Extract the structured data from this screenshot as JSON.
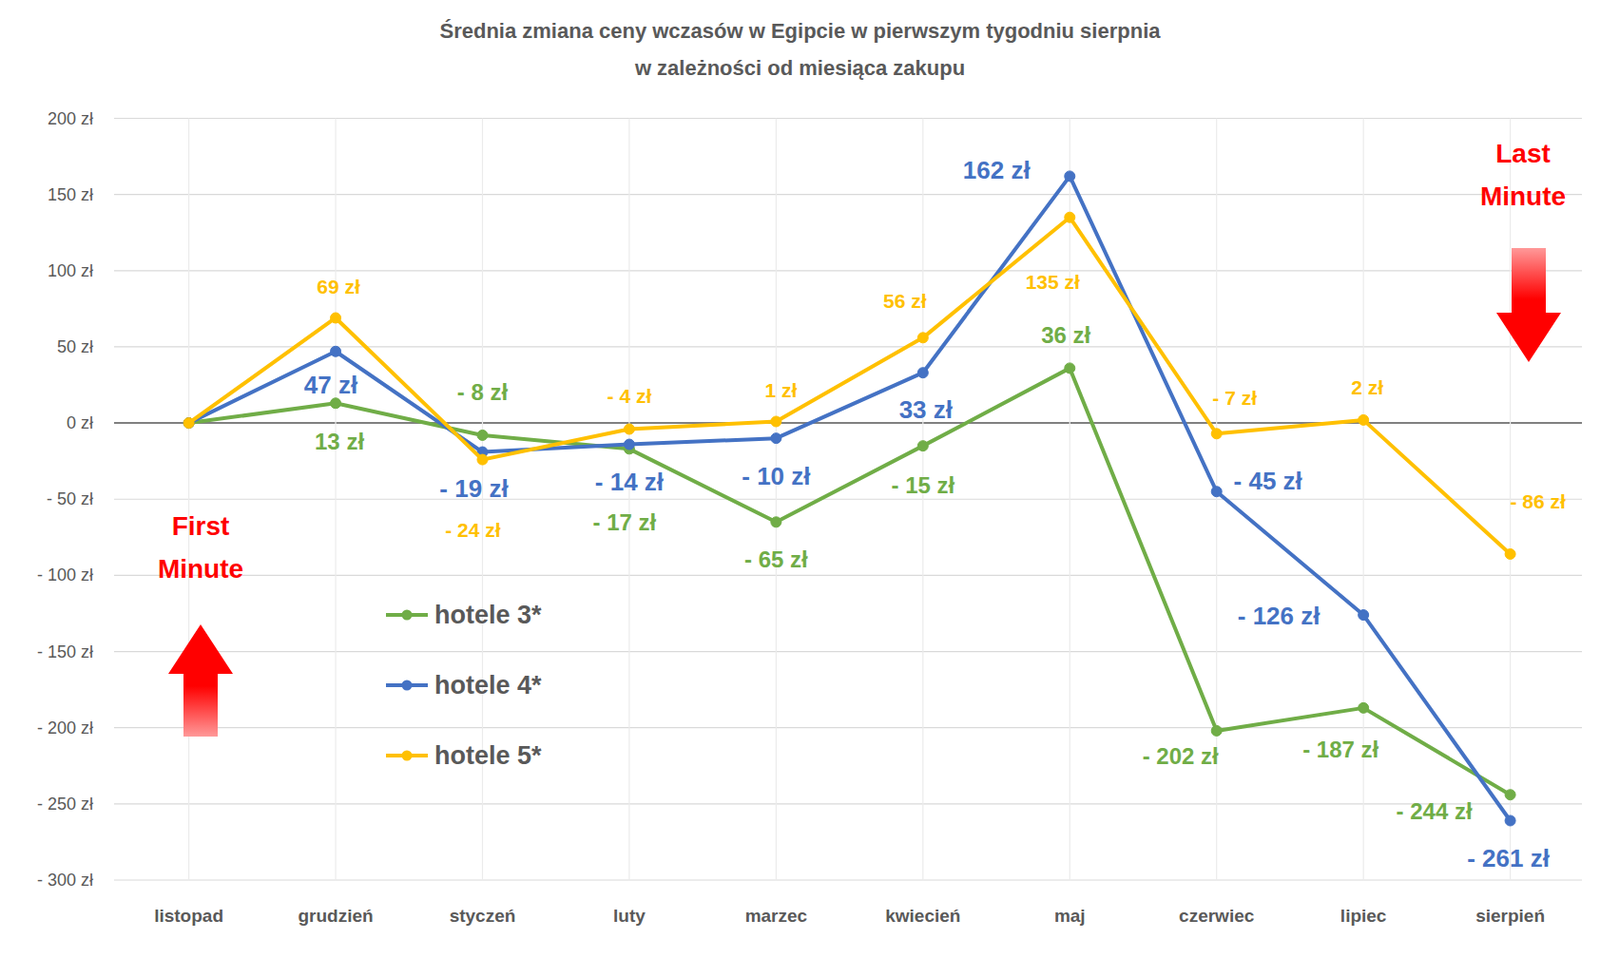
{
  "chart_data": {
    "type": "line",
    "title": "Średnia zmiana ceny wczasów w Egipcie w pierwszym tygodniu sierpnia",
    "subtitle": "w zależności od miesiąca zakupu",
    "categories": [
      "listopad",
      "grudzień",
      "styczeń",
      "luty",
      "marzec",
      "kwiecień",
      "maj",
      "czerwiec",
      "lipiec",
      "sierpień"
    ],
    "series": [
      {
        "name": "hotele 3*",
        "color": "#70AD47",
        "marker": "circle",
        "values": [
          0,
          13,
          -8,
          -17,
          -65,
          -15,
          36,
          -202,
          -187,
          -244
        ],
        "value_labels": [
          null,
          "13 zł",
          "- 8 zł",
          "- 17 zł",
          "- 65 zł",
          "- 15 zł",
          "36 zł",
          "- 202 zł",
          "- 187 zł",
          "- 244 zł"
        ]
      },
      {
        "name": "hotele 4*",
        "color": "#4472C4",
        "marker": "circle",
        "values": [
          0,
          47,
          -19,
          -14,
          -10,
          33,
          162,
          -45,
          -126,
          -261
        ],
        "value_labels": [
          null,
          "47 zł",
          "- 19 zł",
          "- 14 zł",
          "- 10 zł",
          "33 zł",
          "162 zł",
          "- 45 zł",
          "- 126 zł",
          "- 261 zł"
        ]
      },
      {
        "name": "hotele 5*",
        "color": "#FFC000",
        "marker": "circle",
        "values": [
          0,
          69,
          -24,
          -4,
          1,
          56,
          135,
          -7,
          2,
          -86
        ],
        "value_labels": [
          null,
          "69 zł",
          "- 24 zł",
          "- 4 zł",
          "1 zł",
          "56 zł",
          "135 zł",
          "- 7 zł",
          "2 zł",
          "- 86 zł"
        ]
      }
    ],
    "ylim": [
      -300,
      200
    ],
    "yticks": [
      {
        "value": 200,
        "label": "200 zł"
      },
      {
        "value": 150,
        "label": "150 zł"
      },
      {
        "value": 100,
        "label": "100 zł"
      },
      {
        "value": 50,
        "label": "50 zł"
      },
      {
        "value": 0,
        "label": "0 zł"
      },
      {
        "value": -50,
        "label": "- 50 zł"
      },
      {
        "value": -100,
        "label": "- 100 zł"
      },
      {
        "value": -150,
        "label": "- 150 zł"
      },
      {
        "value": -200,
        "label": "- 200 zł"
      },
      {
        "value": -250,
        "label": "- 250 zł"
      },
      {
        "value": -300,
        "label": "- 300 zł"
      }
    ],
    "grid": true,
    "data_labels": true,
    "legend": "left",
    "annotations": [
      "First Minute",
      "Last Minute"
    ]
  }
}
